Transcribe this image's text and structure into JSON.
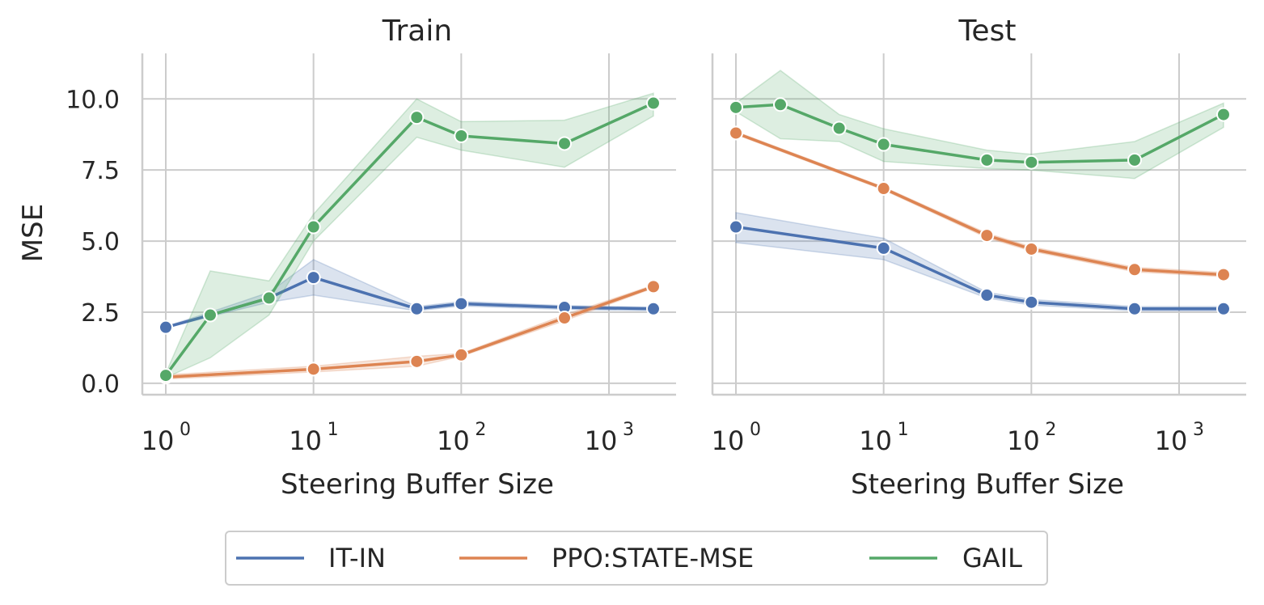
{
  "figure": {
    "ylabel": "MSE",
    "legend": {
      "placement": "bottom-center",
      "entries": [
        {
          "label": "IT-IN",
          "color": "#4c72b0"
        },
        {
          "label": "PPO:STATE-MSE",
          "color": "#dd8452"
        },
        {
          "label": "GAIL",
          "color": "#55a868"
        }
      ]
    }
  },
  "chart_data": [
    {
      "type": "line",
      "title": "Train",
      "xlabel": "Steering Buffer Size",
      "ylabel": "MSE",
      "xscale": "log",
      "xlim": [
        0.7,
        2800
      ],
      "ylim": [
        -0.4,
        11.6
      ],
      "xticks": [
        {
          "value": 1,
          "base": "10",
          "exp": "0"
        },
        {
          "value": 10,
          "base": "10",
          "exp": "1"
        },
        {
          "value": 100,
          "base": "10",
          "exp": "2"
        },
        {
          "value": 1000,
          "base": "10",
          "exp": "3"
        }
      ],
      "yticks": [
        {
          "value": 0,
          "label": "0.0"
        },
        {
          "value": 2.5,
          "label": "2.5"
        },
        {
          "value": 5,
          "label": "5.0"
        },
        {
          "value": 7.5,
          "label": "7.5"
        },
        {
          "value": 10,
          "label": "10.0"
        }
      ],
      "grid": true,
      "series": [
        {
          "name": "IT-IN",
          "color": "#4c72b0",
          "x": [
            1,
            2,
            5,
            10,
            50,
            100,
            500,
            2000
          ],
          "y": [
            1.97,
            2.4,
            3.0,
            3.72,
            2.62,
            2.8,
            2.67,
            2.62
          ],
          "lower": [
            1.95,
            2.35,
            2.85,
            3.1,
            2.55,
            2.72,
            2.6,
            2.55
          ],
          "upper": [
            2.0,
            2.5,
            3.2,
            4.35,
            2.7,
            2.88,
            2.73,
            2.68
          ]
        },
        {
          "name": "PPO:STATE-MSE",
          "color": "#dd8452",
          "x": [
            1,
            10,
            50,
            100,
            500,
            2000
          ],
          "y": [
            0.22,
            0.5,
            0.77,
            1.0,
            2.3,
            3.4
          ],
          "lower": [
            0.15,
            0.4,
            0.6,
            0.95,
            2.2,
            3.35
          ],
          "upper": [
            0.3,
            0.6,
            0.95,
            1.05,
            2.4,
            3.45
          ]
        },
        {
          "name": "GAIL",
          "color": "#55a868",
          "x": [
            1,
            2,
            5,
            10,
            50,
            100,
            500,
            2000
          ],
          "y": [
            0.28,
            2.4,
            3.0,
            5.5,
            9.35,
            8.7,
            8.43,
            9.85
          ],
          "lower": [
            0.2,
            0.9,
            2.4,
            5.0,
            8.65,
            8.2,
            7.6,
            9.4
          ],
          "upper": [
            0.35,
            3.95,
            3.6,
            5.95,
            10.0,
            9.2,
            9.25,
            10.2
          ]
        }
      ]
    },
    {
      "type": "line",
      "title": "Test",
      "xlabel": "Steering Buffer Size",
      "xscale": "log",
      "xlim": [
        0.7,
        2800
      ],
      "ylim": [
        -0.4,
        11.6
      ],
      "xticks": [
        {
          "value": 1,
          "base": "10",
          "exp": "0"
        },
        {
          "value": 10,
          "base": "10",
          "exp": "1"
        },
        {
          "value": 100,
          "base": "10",
          "exp": "2"
        },
        {
          "value": 1000,
          "base": "10",
          "exp": "3"
        }
      ],
      "grid": true,
      "shared_y": true,
      "series": [
        {
          "name": "IT-IN",
          "color": "#4c72b0",
          "x": [
            1,
            10,
            50,
            100,
            500,
            2000
          ],
          "y": [
            5.5,
            4.75,
            3.1,
            2.85,
            2.62,
            2.62
          ],
          "lower": [
            4.95,
            4.35,
            3.0,
            2.75,
            2.55,
            2.55
          ],
          "upper": [
            6.0,
            5.1,
            3.2,
            2.95,
            2.7,
            2.7
          ]
        },
        {
          "name": "PPO:STATE-MSE",
          "color": "#dd8452",
          "x": [
            1,
            10,
            50,
            100,
            500,
            2000
          ],
          "y": [
            8.8,
            6.85,
            5.2,
            4.72,
            4.0,
            3.82
          ],
          "lower": [
            8.75,
            6.8,
            5.12,
            4.65,
            3.92,
            3.75
          ],
          "upper": [
            8.85,
            6.9,
            5.28,
            4.8,
            4.08,
            3.9
          ]
        },
        {
          "name": "GAIL",
          "color": "#55a868",
          "x": [
            1,
            2,
            5,
            10,
            50,
            100,
            500,
            2000
          ],
          "y": [
            9.7,
            9.8,
            8.97,
            8.4,
            7.85,
            7.77,
            7.85,
            9.45
          ],
          "lower": [
            9.55,
            8.6,
            8.5,
            7.8,
            7.55,
            7.5,
            7.2,
            9.0
          ],
          "upper": [
            9.85,
            11.0,
            9.45,
            8.95,
            8.2,
            8.05,
            8.5,
            9.85
          ]
        }
      ]
    }
  ]
}
